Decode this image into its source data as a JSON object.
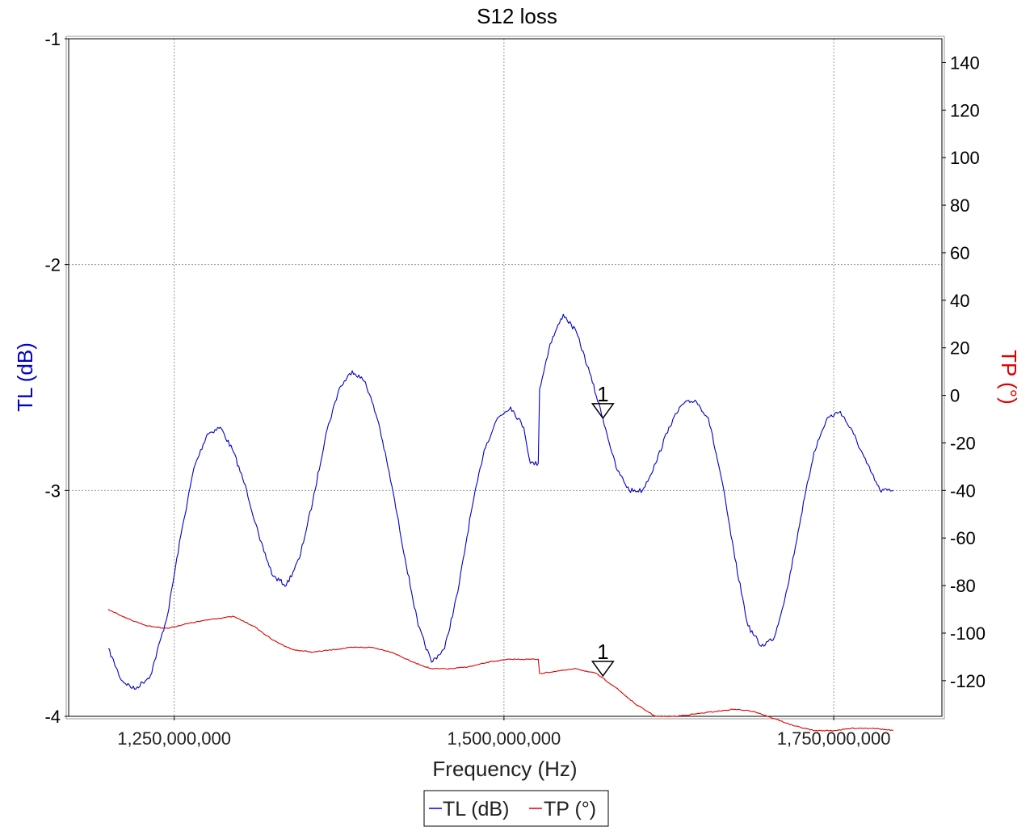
{
  "chart_data": {
    "type": "line",
    "title": "S12 loss",
    "xlabel": "Frequency (Hz)",
    "ylabel_left": "TL (dB)",
    "ylabel_right": "TP (°)",
    "x_ticks": [
      "1,250,000,000",
      "1,500,000,000",
      "1,750,000,000"
    ],
    "x_tick_values": [
      1250000000,
      1500000000,
      1750000000
    ],
    "xlim": [
      1170000000,
      1832000000
    ],
    "y_left_ticks": [
      "-1",
      "-2",
      "-3",
      "-4"
    ],
    "y_left_tick_values": [
      -1,
      -2,
      -3,
      -4
    ],
    "ylim_left": [
      -4,
      -1
    ],
    "y_right_ticks": [
      "140",
      "120",
      "100",
      "80",
      "60",
      "40",
      "20",
      "0",
      "-20",
      "-40",
      "-60",
      "-80",
      "-100",
      "-120"
    ],
    "y_right_tick_values": [
      140,
      120,
      100,
      80,
      60,
      40,
      20,
      0,
      -20,
      -40,
      -60,
      -80,
      -100,
      -120
    ],
    "ylim_right": [
      -135,
      150
    ],
    "grid": true,
    "legend": {
      "position": "bottom-center",
      "entries": [
        "TL (dB)",
        "TP (°)"
      ]
    },
    "colors": {
      "tl": "#0000cc",
      "tp": "#dd0000",
      "axis": "#000000",
      "grid": "#999999"
    },
    "series": [
      {
        "name": "TL (dB)",
        "axis": "left",
        "x": [
          1200000000,
          1210000000,
          1220000000,
          1232000000,
          1245000000,
          1255000000,
          1265000000,
          1275000000,
          1285000000,
          1295000000,
          1305000000,
          1315000000,
          1325000000,
          1335000000,
          1345000000,
          1355000000,
          1365000000,
          1375000000,
          1385000000,
          1395000000,
          1405000000,
          1415000000,
          1425000000,
          1435000000,
          1445000000,
          1455000000,
          1465000000,
          1475000000,
          1485000000,
          1495000000,
          1505000000,
          1515000000,
          1520000000,
          1526000000,
          1527000000,
          1535000000,
          1545000000,
          1555000000,
          1565000000,
          1575000000,
          1585000000,
          1595000000,
          1605000000,
          1615000000,
          1625000000,
          1635000000,
          1645000000,
          1655000000,
          1665000000,
          1675000000,
          1685000000,
          1695000000,
          1705000000,
          1715000000,
          1725000000,
          1735000000,
          1745000000,
          1755000000,
          1765000000,
          1775000000,
          1785000000,
          1795000000
        ],
        "y": [
          -3.7,
          -3.84,
          -3.88,
          -3.82,
          -3.55,
          -3.2,
          -2.9,
          -2.75,
          -2.72,
          -2.83,
          -3.0,
          -3.22,
          -3.38,
          -3.42,
          -3.3,
          -3.05,
          -2.75,
          -2.55,
          -2.47,
          -2.52,
          -2.7,
          -2.98,
          -3.3,
          -3.6,
          -3.76,
          -3.7,
          -3.45,
          -3.1,
          -2.82,
          -2.68,
          -2.63,
          -2.72,
          -2.88,
          -2.88,
          -2.55,
          -2.35,
          -2.22,
          -2.3,
          -2.48,
          -2.68,
          -2.9,
          -3.0,
          -3.0,
          -2.88,
          -2.72,
          -2.62,
          -2.6,
          -2.68,
          -2.95,
          -3.3,
          -3.6,
          -3.69,
          -3.65,
          -3.43,
          -3.12,
          -2.83,
          -2.68,
          -2.65,
          -2.75,
          -2.88,
          -3.0,
          -3.0
        ],
        "marker": {
          "label": "1",
          "x": 1575000000,
          "y": -2.68
        }
      },
      {
        "name": "TP (°)",
        "axis": "right",
        "x": [
          1200000000,
          1215000000,
          1230000000,
          1245000000,
          1260000000,
          1280000000,
          1295000000,
          1310000000,
          1325000000,
          1340000000,
          1355000000,
          1370000000,
          1385000000,
          1400000000,
          1415000000,
          1430000000,
          1445000000,
          1460000000,
          1475000000,
          1490000000,
          1505000000,
          1518000000,
          1526000000,
          1527000000,
          1540000000,
          1555000000,
          1570000000,
          1585000000,
          1600000000,
          1615000000,
          1630000000,
          1645000000,
          1660000000,
          1675000000,
          1690000000,
          1705000000,
          1720000000,
          1735000000,
          1750000000,
          1765000000,
          1780000000,
          1795000000
        ],
        "y": [
          -90,
          -94,
          -97,
          -98,
          -96,
          -94,
          -93,
          -97,
          -103,
          -107,
          -108,
          -107,
          -106,
          -106,
          -108,
          -112,
          -115,
          -115,
          -114,
          -112,
          -111,
          -111,
          -111,
          -117,
          -116,
          -115,
          -117,
          -123,
          -130,
          -135,
          -135,
          -134,
          -133,
          -132,
          -133,
          -136,
          -139,
          -141,
          -141,
          -140,
          -140,
          -141
        ],
        "marker": {
          "label": "1",
          "x": 1575000000,
          "y": -118
        }
      }
    ]
  }
}
